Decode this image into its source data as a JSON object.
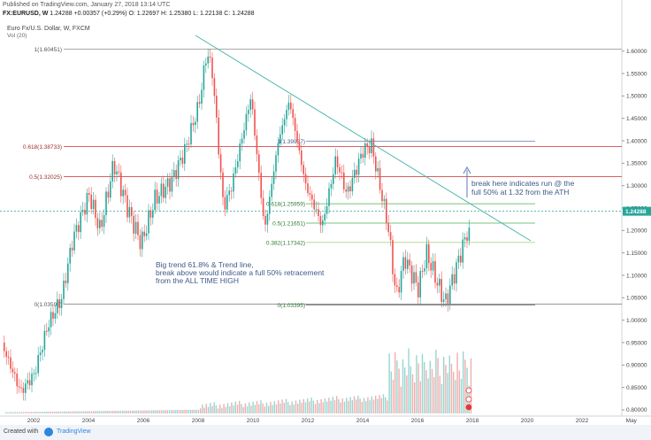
{
  "header": {
    "published": "Published on TradingView.com, January 27, 2018 13:14 UTC",
    "symbol": "FX:EURUSD, W",
    "last": "1.24288",
    "change": "+0.00357 (+0.29%)",
    "o": "O: 1.22697",
    "h": "H: 1.25380",
    "l": "L: 1.22138",
    "c": "C: 1.24288",
    "title": "Euro Fx/U.S. Dollar, W, FXCM",
    "vol": "Vol (20)"
  },
  "footer": {
    "created_with": "Created with",
    "brand": "TradingView"
  },
  "colors": {
    "up": "#26a69a",
    "down": "#ef5350",
    "trend": "#4db6ac",
    "fib_big": "#d84848",
    "fib_small": "#4caf50",
    "text": "#333333"
  },
  "chart_data": {
    "type": "candlestick",
    "x_ticks": [
      "2002",
      "2004",
      "2006",
      "2008",
      "2010",
      "2012",
      "2014",
      "2016",
      "2018",
      "2020",
      "2022",
      "May"
    ],
    "y_ticks": [
      "1.60000",
      "1.55000",
      "1.50000",
      "1.45000",
      "1.40000",
      "1.35000",
      "1.30000",
      "1.25000",
      "1.20000",
      "1.15000",
      "1.10000",
      "1.05000",
      "1.00000",
      "0.95000",
      "0.90000",
      "0.85000",
      "0.80000"
    ],
    "ylim": [
      0.79,
      1.635
    ],
    "last_price": "1.24288",
    "price_path": [
      [
        "2000.8",
        0.95
      ],
      [
        "2001.5",
        0.84
      ],
      [
        "2002.0",
        0.88
      ],
      [
        "2002.5",
        0.99
      ],
      [
        "2003.0",
        1.05
      ],
      [
        "2003.4",
        1.18
      ],
      [
        "2004.0",
        1.28
      ],
      [
        "2004.4",
        1.2
      ],
      [
        "2004.9",
        1.35
      ],
      [
        "2005.4",
        1.25
      ],
      [
        "2005.9",
        1.17
      ],
      [
        "2006.4",
        1.27
      ],
      [
        "2007.0",
        1.31
      ],
      [
        "2007.5",
        1.38
      ],
      [
        "2008.0",
        1.48
      ],
      [
        "2008.3",
        1.6
      ],
      [
        "2008.5",
        1.55
      ],
      [
        "2008.9",
        1.25
      ],
      [
        "2009.2",
        1.3
      ],
      [
        "2009.9",
        1.5
      ],
      [
        "2010.4",
        1.2
      ],
      [
        "2010.9",
        1.4
      ],
      [
        "2011.3",
        1.49
      ],
      [
        "2011.9",
        1.3
      ],
      [
        "2012.5",
        1.21
      ],
      [
        "2013.0",
        1.36
      ],
      [
        "2013.4",
        1.28
      ],
      [
        "2014.0",
        1.38
      ],
      [
        "2014.3",
        1.39
      ],
      [
        "2014.9",
        1.21
      ],
      [
        "2015.2",
        1.05
      ],
      [
        "2015.5",
        1.14
      ],
      [
        "2016.0",
        1.07
      ],
      [
        "2016.3",
        1.15
      ],
      [
        "2016.9",
        1.05
      ],
      [
        "2017.0",
        1.04
      ],
      [
        "2017.5",
        1.14
      ],
      [
        "2017.8",
        1.2
      ],
      [
        "2017.95",
        1.17
      ],
      [
        "2018.07",
        1.243
      ]
    ],
    "annotations": [
      {
        "label": "1(1.60451)",
        "price": 1.60451,
        "set": "big"
      },
      {
        "label": "0.618(1.38733)",
        "price": 1.38733,
        "set": "big"
      },
      {
        "label": "0.5(1.32025)",
        "price": 1.32025,
        "set": "big"
      },
      {
        "label": "0(1.03598)",
        "price": 1.03598,
        "set": "big"
      },
      {
        "label": "1(1.39937)",
        "price": 1.39937,
        "set": "small"
      },
      {
        "label": "0.618(1.25959)",
        "price": 1.25959,
        "set": "small"
      },
      {
        "label": "0.5(1.21651)",
        "price": 1.21651,
        "set": "small"
      },
      {
        "label": "0.382(1.17342)",
        "price": 1.17342,
        "set": "small"
      },
      {
        "label": "0(1.03395)",
        "price": 1.03395,
        "set": "small"
      }
    ],
    "notes": [
      "break here indicates run @ the full 50% at 1.32 from the ATH",
      "Big trend 61.8% & Trend line, break above would indicate a full 50% retracement from the ALL TIME HIGH"
    ]
  }
}
